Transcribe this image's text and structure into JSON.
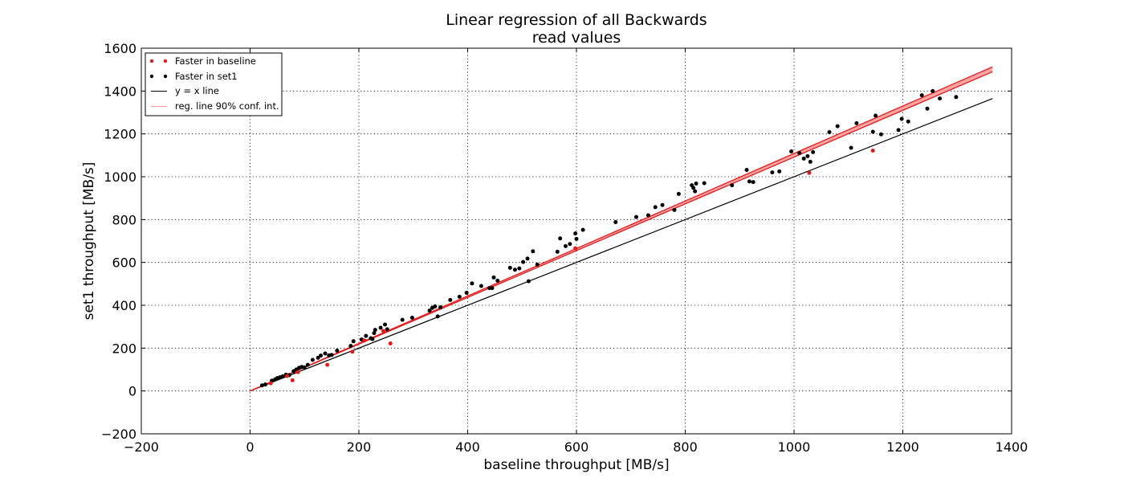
{
  "chart_data": {
    "type": "scatter",
    "title": [
      "Linear regression of all Backwards",
      "read values"
    ],
    "xlabel": "baseline throughput [MB/s]",
    "ylabel": "set1 throughput [MB/s]",
    "xlim": [
      -200,
      1400
    ],
    "ylim": [
      -200,
      1600
    ],
    "xticks": [
      -200,
      0,
      200,
      400,
      600,
      800,
      1000,
      1200,
      1400
    ],
    "yticks": [
      -200,
      0,
      200,
      400,
      600,
      800,
      1000,
      1200,
      1400,
      1600
    ],
    "xtick_labels": [
      "−200",
      "0",
      "200",
      "400",
      "600",
      "800",
      "1000",
      "1200",
      "1400"
    ],
    "ytick_labels": [
      "−200",
      "0",
      "200",
      "400",
      "600",
      "800",
      "1000",
      "1200",
      "1400",
      "1600"
    ],
    "grid": true,
    "legend_position": "top-left",
    "legend": [
      {
        "label": "Faster in baseline",
        "kind": "points",
        "color": "#e31a1c"
      },
      {
        "label": "Faster in set1",
        "kind": "points",
        "color": "#000000"
      },
      {
        "label": "y = x line",
        "kind": "line",
        "color": "#000000"
      },
      {
        "label": "reg. line 90% conf. int.",
        "kind": "band",
        "color": "#ff9999"
      }
    ],
    "series": [
      {
        "name": "Faster in baseline",
        "color": "#e31a1c",
        "points": [
          [
            38,
            36
          ],
          [
            68,
            70
          ],
          [
            78,
            50
          ],
          [
            88,
            88
          ],
          [
            142,
            122
          ],
          [
            188,
            183
          ],
          [
            258,
            222
          ],
          [
            245,
            280
          ],
          [
            210,
            236
          ],
          [
            598,
            666
          ],
          [
            1028,
            1018
          ],
          [
            1145,
            1122
          ]
        ]
      },
      {
        "name": "Faster in set1",
        "color": "#000000",
        "points": [
          [
            22,
            26
          ],
          [
            28,
            30
          ],
          [
            40,
            48
          ],
          [
            46,
            54
          ],
          [
            50,
            60
          ],
          [
            55,
            64
          ],
          [
            60,
            68
          ],
          [
            66,
            76
          ],
          [
            72,
            74
          ],
          [
            80,
            92
          ],
          [
            85,
            100
          ],
          [
            90,
            108
          ],
          [
            95,
            112
          ],
          [
            100,
            110
          ],
          [
            106,
            122
          ],
          [
            115,
            145
          ],
          [
            125,
            155
          ],
          [
            130,
            165
          ],
          [
            138,
            175
          ],
          [
            145,
            166
          ],
          [
            150,
            168
          ],
          [
            160,
            188
          ],
          [
            185,
            210
          ],
          [
            190,
            232
          ],
          [
            205,
            240
          ],
          [
            213,
            257
          ],
          [
            222,
            246
          ],
          [
            225,
            242
          ],
          [
            228,
            270
          ],
          [
            230,
            285
          ],
          [
            240,
            295
          ],
          [
            248,
            310
          ],
          [
            252,
            288
          ],
          [
            280,
            332
          ],
          [
            298,
            342
          ],
          [
            330,
            375
          ],
          [
            335,
            388
          ],
          [
            340,
            395
          ],
          [
            345,
            348
          ],
          [
            350,
            390
          ],
          [
            368,
            425
          ],
          [
            385,
            440
          ],
          [
            398,
            458
          ],
          [
            408,
            502
          ],
          [
            425,
            490
          ],
          [
            440,
            480
          ],
          [
            445,
            480
          ],
          [
            448,
            530
          ],
          [
            455,
            515
          ],
          [
            478,
            575
          ],
          [
            487,
            566
          ],
          [
            495,
            572
          ],
          [
            502,
            602
          ],
          [
            510,
            618
          ],
          [
            512,
            512
          ],
          [
            520,
            652
          ],
          [
            528,
            590
          ],
          [
            565,
            650
          ],
          [
            570,
            712
          ],
          [
            580,
            676
          ],
          [
            588,
            686
          ],
          [
            598,
            735
          ],
          [
            600,
            710
          ],
          [
            612,
            752
          ],
          [
            672,
            788
          ],
          [
            710,
            812
          ],
          [
            732,
            820
          ],
          [
            745,
            858
          ],
          [
            758,
            868
          ],
          [
            780,
            845
          ],
          [
            788,
            920
          ],
          [
            812,
            960
          ],
          [
            815,
            948
          ],
          [
            818,
            932
          ],
          [
            820,
            968
          ],
          [
            835,
            970
          ],
          [
            886,
            960
          ],
          [
            913,
            1032
          ],
          [
            918,
            978
          ],
          [
            925,
            975
          ],
          [
            960,
            1020
          ],
          [
            973,
            1025
          ],
          [
            995,
            1118
          ],
          [
            1010,
            1110
          ],
          [
            1018,
            1085
          ],
          [
            1025,
            1096
          ],
          [
            1030,
            1070
          ],
          [
            1035,
            1115
          ],
          [
            1065,
            1208
          ],
          [
            1080,
            1236
          ],
          [
            1105,
            1135
          ],
          [
            1115,
            1250
          ],
          [
            1145,
            1210
          ],
          [
            1150,
            1285
          ],
          [
            1160,
            1198
          ],
          [
            1192,
            1218
          ],
          [
            1198,
            1270
          ],
          [
            1210,
            1258
          ],
          [
            1235,
            1380
          ],
          [
            1245,
            1318
          ],
          [
            1255,
            1400
          ],
          [
            1268,
            1365
          ],
          [
            1298,
            1372
          ]
        ]
      }
    ],
    "reference_line": {
      "name": "y = x line",
      "from": [
        0,
        0
      ],
      "to": [
        1365,
        1365
      ],
      "color": "#000000"
    },
    "regression_band": {
      "name": "reg. line 90% conf. int.",
      "color": "#e31a1c",
      "fill": "#ff9999",
      "x": [
        0,
        1365
      ],
      "lower": [
        0,
        1490
      ],
      "upper": [
        0,
        1513
      ],
      "center": [
        0,
        1500
      ]
    }
  }
}
